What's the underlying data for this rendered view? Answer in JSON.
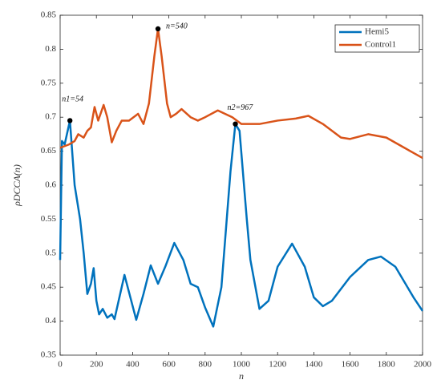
{
  "chart_data": {
    "type": "line",
    "xlabel": "n",
    "ylabel": "ρDCCA(n)",
    "xlim": [
      0,
      2000
    ],
    "ylim": [
      0.35,
      0.85
    ],
    "xticks": [
      0,
      200,
      400,
      600,
      800,
      1000,
      1200,
      1400,
      1600,
      1800,
      2000
    ],
    "yticks": [
      0.35,
      0.4,
      0.45,
      0.5,
      0.55,
      0.6,
      0.65,
      0.7,
      0.75,
      0.8,
      0.85
    ],
    "legend": "northeast",
    "series": [
      {
        "name": "Hemi5",
        "color": "#0072bd",
        "x": [
          0,
          10,
          25,
          54,
          80,
          110,
          130,
          150,
          170,
          185,
          200,
          215,
          235,
          260,
          285,
          300,
          355,
          420,
          460,
          500,
          540,
          580,
          630,
          680,
          720,
          760,
          800,
          845,
          890,
          940,
          967,
          990,
          1030,
          1050,
          1100,
          1150,
          1200,
          1280,
          1350,
          1400,
          1450,
          1500,
          1600,
          1700,
          1770,
          1850,
          1950,
          2000
        ],
        "values": [
          0.49,
          0.665,
          0.66,
          0.695,
          0.6,
          0.55,
          0.5,
          0.44,
          0.455,
          0.478,
          0.43,
          0.41,
          0.418,
          0.405,
          0.41,
          0.403,
          0.468,
          0.402,
          0.44,
          0.482,
          0.455,
          0.48,
          0.515,
          0.49,
          0.455,
          0.45,
          0.42,
          0.392,
          0.45,
          0.62,
          0.69,
          0.68,
          0.55,
          0.49,
          0.418,
          0.43,
          0.48,
          0.514,
          0.48,
          0.435,
          0.422,
          0.43,
          0.465,
          0.49,
          0.495,
          0.48,
          0.435,
          0.415
        ]
      },
      {
        "name": "Control1",
        "color": "#d95319",
        "x": [
          0,
          50,
          80,
          100,
          130,
          150,
          170,
          190,
          210,
          240,
          260,
          285,
          310,
          340,
          380,
          430,
          460,
          490,
          520,
          540,
          560,
          590,
          610,
          640,
          670,
          720,
          760,
          800,
          870,
          950,
          1000,
          1100,
          1200,
          1300,
          1370,
          1450,
          1550,
          1600,
          1700,
          1800,
          1900,
          2000
        ],
        "values": [
          0.655,
          0.66,
          0.665,
          0.675,
          0.67,
          0.68,
          0.685,
          0.715,
          0.695,
          0.718,
          0.7,
          0.663,
          0.68,
          0.695,
          0.695,
          0.705,
          0.69,
          0.72,
          0.79,
          0.83,
          0.79,
          0.72,
          0.7,
          0.705,
          0.712,
          0.7,
          0.695,
          0.7,
          0.71,
          0.7,
          0.69,
          0.69,
          0.695,
          0.698,
          0.702,
          0.69,
          0.67,
          0.668,
          0.675,
          0.67,
          0.655,
          0.64
        ]
      }
    ],
    "annotations": [
      {
        "text": "n1=54",
        "x": 54,
        "y": 0.695
      },
      {
        "text": "n=540",
        "x": 540,
        "y": 0.83
      },
      {
        "text": "n2=967",
        "x": 967,
        "y": 0.69
      }
    ]
  }
}
